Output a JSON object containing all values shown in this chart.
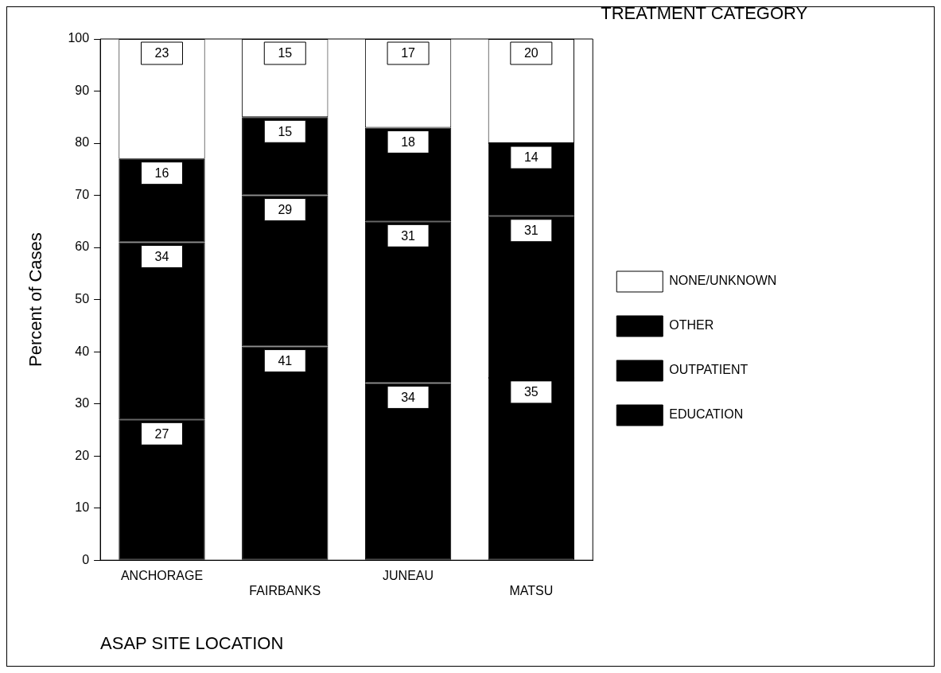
{
  "chart_data": {
    "type": "bar",
    "xlabel": "ASAP SITE LOCATION",
    "ylabel": "Percent of Cases",
    "legend_title": "TREATMENT CATEGORY",
    "categories": [
      "ANCHORAGE",
      "FAIRBANKS",
      "JUNEAU",
      "MATSU"
    ],
    "series": [
      {
        "name": "EDUCATION",
        "color": "#000000",
        "values": [
          27,
          41,
          34,
          35
        ]
      },
      {
        "name": "OUTPATIENT",
        "color": "#000000",
        "values": [
          34,
          29,
          31,
          31
        ]
      },
      {
        "name": "OTHER",
        "color": "#000000",
        "values": [
          16,
          15,
          18,
          14
        ]
      },
      {
        "name": "NONE/UNKNOWN",
        "color": "#ffffff",
        "values": [
          23,
          15,
          17,
          20
        ]
      }
    ],
    "stacked": true,
    "ylim": [
      0,
      100
    ],
    "yticks": [
      0,
      10,
      20,
      30,
      40,
      50,
      60,
      70,
      80,
      90,
      100
    ],
    "grid": false,
    "legend": "right",
    "data_labels": true
  }
}
